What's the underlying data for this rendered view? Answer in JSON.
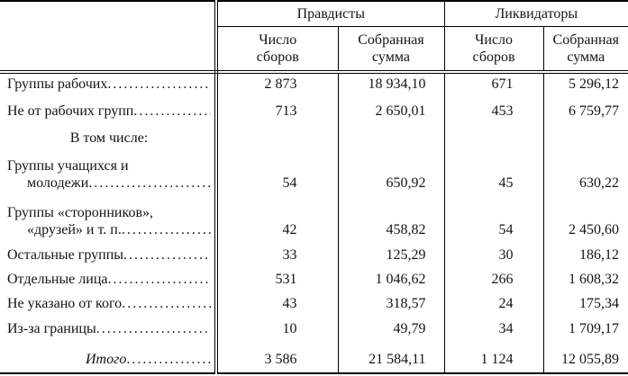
{
  "table": {
    "column_groups": [
      {
        "title": "Правдисты"
      },
      {
        "title": "Ликвидаторы"
      }
    ],
    "subcolumns": {
      "count": "Число сборов",
      "sum": "Собранная сумма"
    },
    "rows": [
      {
        "label": "Группы рабочих",
        "values": [
          "2 873",
          "18 934,10",
          "671",
          "5 296,12"
        ]
      },
      {
        "label": "Не от рабочих групп",
        "values": [
          "713",
          "2 650,01",
          "453",
          "6 759,77"
        ]
      },
      {
        "label_line1": "Группы учащихся и",
        "label_line2": "молодежи",
        "values": [
          "54",
          "650,92",
          "45",
          "630,22"
        ]
      },
      {
        "label_line1": "Группы «сторонников»,",
        "label_line2": "«друзей» и т. п.",
        "values": [
          "42",
          "458,82",
          "54",
          "2 450,60"
        ]
      },
      {
        "label": "Остальные группы",
        "values": [
          "33",
          "125,29",
          "30",
          "186,12"
        ]
      },
      {
        "label": "Отдельные лица",
        "values": [
          "531",
          "1 046,62",
          "266",
          "1 608,32"
        ]
      },
      {
        "label": "Не указано от кого",
        "values": [
          "43",
          "318,57",
          "24",
          "175,34"
        ]
      },
      {
        "label": "Из-за границы",
        "values": [
          "10",
          "49,79",
          "34",
          "1 709,17"
        ]
      }
    ],
    "section_label": "В том числе:",
    "total": {
      "label": "Итого",
      "values": [
        "3 586",
        "21 584,11",
        "1 124",
        "12 055,89"
      ]
    },
    "colors": {
      "background": "#ffffff",
      "rule": "#000000",
      "text": "#141414"
    }
  }
}
